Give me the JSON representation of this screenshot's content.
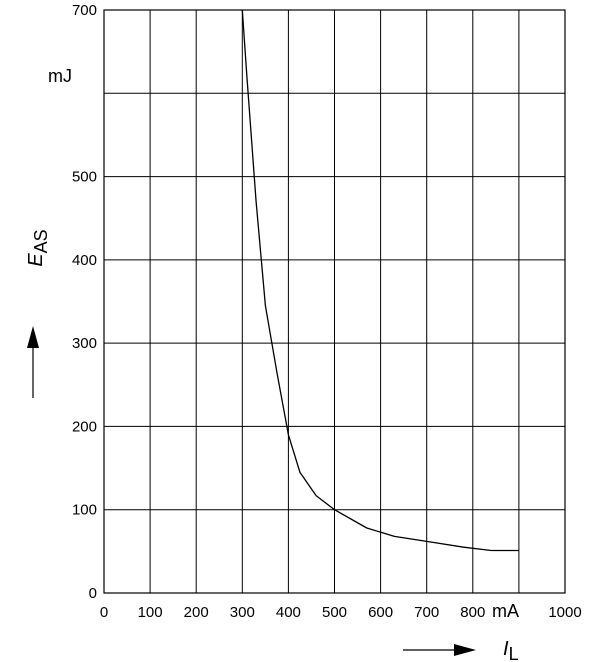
{
  "chart_data": {
    "type": "line",
    "title": "",
    "xlabel": {
      "symbol": "I",
      "subscript": "L"
    },
    "ylabel": {
      "symbol": "E",
      "subscript": "AS"
    },
    "xunit": "mA",
    "yunit": "mJ",
    "xlim": [
      0,
      1000
    ],
    "ylim": [
      0,
      700
    ],
    "grid": true,
    "x_ticks": [
      "0",
      "100",
      "200",
      "300",
      "400",
      "500",
      "600",
      "700",
      "800",
      "1000"
    ],
    "y_ticks": [
      "0",
      "100",
      "200",
      "300",
      "400",
      "500",
      "700"
    ],
    "series": [
      {
        "x": [
          300,
          310,
          330,
          350,
          375,
          400,
          425,
          460,
          500,
          570,
          630,
          700,
          780,
          840,
          900
        ],
        "y": [
          700,
          620,
          470,
          345,
          265,
          190,
          145,
          117,
          100,
          78,
          68,
          62,
          55,
          51,
          51
        ]
      }
    ],
    "colors": {
      "line": "#000000",
      "grid": "#000000",
      "background": "#ffffff"
    }
  }
}
